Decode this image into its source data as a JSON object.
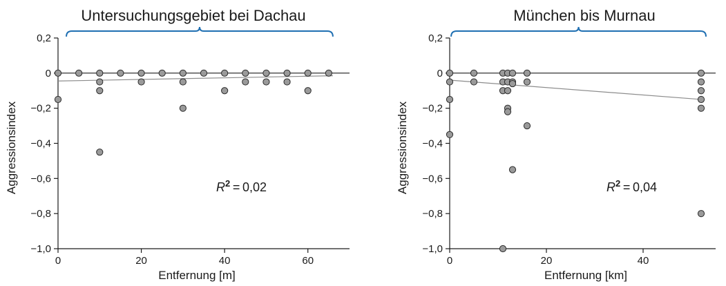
{
  "chart_data": [
    {
      "type": "scatter",
      "title": "Untersuchungsgebiet bei Dachau",
      "xlabel": "Entfernung [m]",
      "ylabel": "Aggressionsindex",
      "xlim": [
        0,
        70
      ],
      "ylim": [
        -1.0,
        0.2
      ],
      "x_ticks": [
        0,
        20,
        40,
        60
      ],
      "x_tick_labels": [
        "0",
        "20",
        "40",
        "60"
      ],
      "y_ticks": [
        0.2,
        0,
        -0.2,
        -0.4,
        -0.6,
        -0.8,
        -1.0
      ],
      "y_tick_labels": [
        "0,2",
        "0",
        "−0,2",
        "−0,4",
        "−0,6",
        "−0,8",
        "−1,0"
      ],
      "annotation": {
        "r2_label": "R",
        "r2_sup": "2",
        "r2_value": " = 0,02"
      },
      "brace": {
        "from": 2,
        "to": 66
      },
      "regression": {
        "x": [
          0,
          66
        ],
        "y": [
          -0.045,
          -0.015
        ]
      },
      "points": [
        [
          0,
          0
        ],
        [
          0,
          -0.15
        ],
        [
          5,
          0
        ],
        [
          10,
          0
        ],
        [
          10,
          -0.05
        ],
        [
          10,
          -0.1
        ],
        [
          10,
          -0.45
        ],
        [
          15,
          0
        ],
        [
          20,
          0
        ],
        [
          20,
          -0.05
        ],
        [
          25,
          0
        ],
        [
          30,
          0
        ],
        [
          30,
          -0.05
        ],
        [
          30,
          -0.2
        ],
        [
          35,
          0
        ],
        [
          40,
          0
        ],
        [
          40,
          -0.1
        ],
        [
          45,
          0
        ],
        [
          45,
          -0.05
        ],
        [
          50,
          0
        ],
        [
          50,
          -0.05
        ],
        [
          55,
          0
        ],
        [
          55,
          -0.05
        ],
        [
          60,
          0
        ],
        [
          60,
          -0.1
        ],
        [
          65,
          0
        ]
      ]
    },
    {
      "type": "scatter",
      "title": "München bis Murnau",
      "xlabel": "Entfernung [km]",
      "ylabel": "Aggressionsindex",
      "xlim": [
        0,
        55
      ],
      "ylim": [
        -1.0,
        0.2
      ],
      "x_ticks": [
        0,
        20,
        40
      ],
      "x_tick_labels": [
        "0",
        "20",
        "40"
      ],
      "y_ticks": [
        0.2,
        0,
        -0.2,
        -0.4,
        -0.6,
        -0.8,
        -1.0
      ],
      "y_tick_labels": [
        "0,2",
        "0",
        "−0,2",
        "−0,4",
        "−0,6",
        "−0,8",
        "−1,0"
      ],
      "annotation": {
        "r2_label": "R",
        "r2_sup": "2",
        "r2_value": " = 0,04"
      },
      "brace": {
        "from": 0.3,
        "to": 53
      },
      "regression": {
        "x": [
          0,
          52
        ],
        "y": [
          -0.04,
          -0.15
        ]
      },
      "points": [
        [
          0,
          0
        ],
        [
          0,
          -0.05
        ],
        [
          0,
          -0.15
        ],
        [
          0,
          -0.35
        ],
        [
          5,
          0
        ],
        [
          5,
          -0.05
        ],
        [
          11,
          0
        ],
        [
          11,
          -0.05
        ],
        [
          11,
          -0.1
        ],
        [
          11,
          -1.0
        ],
        [
          12,
          0
        ],
        [
          12,
          -0.05
        ],
        [
          12,
          -0.1
        ],
        [
          12,
          -0.2
        ],
        [
          12,
          -0.22
        ],
        [
          13,
          0
        ],
        [
          13,
          -0.05
        ],
        [
          13,
          -0.06
        ],
        [
          13,
          -0.55
        ],
        [
          16,
          0
        ],
        [
          16,
          -0.05
        ],
        [
          16,
          -0.3
        ],
        [
          52,
          0
        ],
        [
          52,
          -0.05
        ],
        [
          52,
          -0.1
        ],
        [
          52,
          -0.15
        ],
        [
          52,
          -0.2
        ],
        [
          52,
          -0.8
        ]
      ]
    }
  ]
}
